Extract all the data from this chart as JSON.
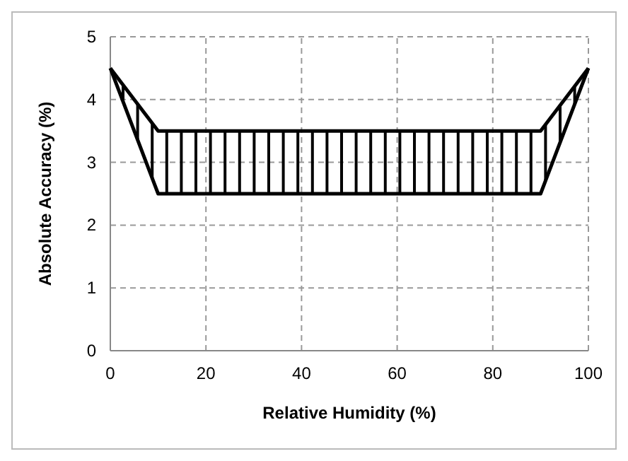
{
  "chart_data": {
    "type": "line",
    "xlabel": "Relative Humidity (%)",
    "ylabel": "Absolute Accuracy (%)",
    "x": [
      0,
      10,
      90,
      100
    ],
    "series": [
      {
        "color": "#000000",
        "values": [
          4.5,
          3.5,
          3.5,
          4.5
        ]
      },
      {
        "color": "#000000",
        "values": [
          4.5,
          2.5,
          2.5,
          4.5
        ]
      }
    ],
    "xlim": [
      0,
      100
    ],
    "xticks": [
      0,
      20,
      40,
      60,
      80,
      100
    ],
    "ylim": [
      0,
      5
    ],
    "yticks": [
      0,
      1,
      2,
      3,
      4,
      5
    ],
    "grid": true,
    "line_style": "solid"
  }
}
